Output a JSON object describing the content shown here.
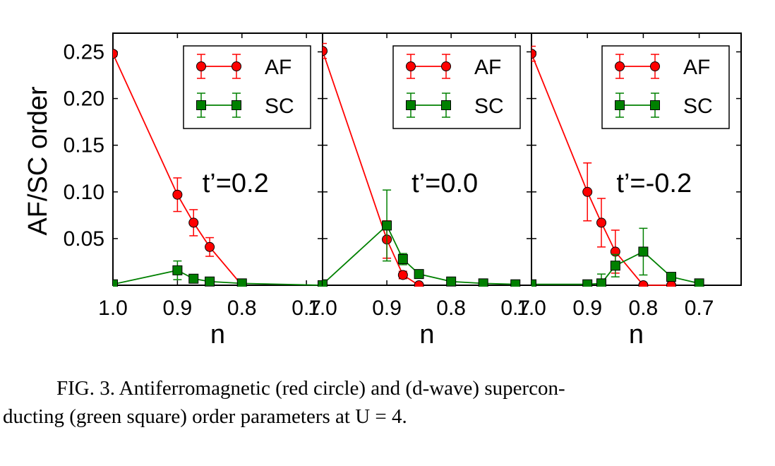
{
  "figure": {
    "ylabel": "AF/SC order",
    "xlabel": "n",
    "colors": {
      "AF": "#ff0000",
      "SC": "#008000",
      "axis": "#000000"
    }
  },
  "chart_data": [
    {
      "type": "line",
      "panel_label": "t’=0.2",
      "xlabel": "n",
      "ylabel": "AF/SC order",
      "xlim": [
        1.0,
        0.675
      ],
      "ylim": [
        0.0,
        0.27
      ],
      "x_ticks": [
        "1.0",
        "0.9",
        "0.8",
        "0.7"
      ],
      "y_ticks": [
        "0.05",
        "0.10",
        "0.15",
        "0.20",
        "0.25"
      ],
      "legend_position": "top-right",
      "series": [
        {
          "name": "AF",
          "marker": "circle",
          "color": "#ff0000",
          "x": [
            1.0,
            0.9,
            0.875,
            0.85,
            0.8
          ],
          "y": [
            0.248,
            0.097,
            0.067,
            0.041,
            0.0
          ],
          "err": [
            0.003,
            0.018,
            0.014,
            0.01,
            0.0
          ]
        },
        {
          "name": "SC",
          "marker": "square",
          "color": "#008000",
          "x": [
            1.0,
            0.9,
            0.875,
            0.85,
            0.8,
            0.675
          ],
          "y": [
            0.001,
            0.016,
            0.007,
            0.004,
            0.002,
            0.0
          ],
          "err": [
            0.0,
            0.01,
            0.003,
            0.002,
            0.0,
            0.0
          ]
        }
      ]
    },
    {
      "type": "line",
      "panel_label": "t’=0.0",
      "xlabel": "n",
      "xlim": [
        1.0,
        0.675
      ],
      "ylim": [
        0.0,
        0.27
      ],
      "x_ticks": [
        "1.0",
        "0.9",
        "0.8",
        "0.7"
      ],
      "legend_position": "top-right",
      "series": [
        {
          "name": "AF",
          "marker": "circle",
          "color": "#ff0000",
          "x": [
            1.0,
            0.9,
            0.875,
            0.85
          ],
          "y": [
            0.251,
            0.049,
            0.011,
            0.0
          ],
          "err": [
            0.008,
            0.02,
            0.004,
            0.0
          ]
        },
        {
          "name": "SC",
          "marker": "square",
          "color": "#008000",
          "x": [
            1.0,
            0.9,
            0.875,
            0.85,
            0.8,
            0.75,
            0.7
          ],
          "y": [
            0.001,
            0.064,
            0.028,
            0.012,
            0.004,
            0.002,
            0.001
          ],
          "err": [
            0.0,
            0.038,
            0.006,
            0.003,
            0.001,
            0.0,
            0.0
          ]
        }
      ]
    },
    {
      "type": "line",
      "panel_label": "t’=-0.2",
      "xlabel": "n",
      "xlim": [
        1.0,
        0.625
      ],
      "ylim": [
        0.0,
        0.27
      ],
      "x_ticks": [
        "1.0",
        "0.9",
        "0.8",
        "0.7"
      ],
      "legend_position": "top-right",
      "series": [
        {
          "name": "AF",
          "marker": "circle",
          "color": "#ff0000",
          "x": [
            1.0,
            0.9,
            0.875,
            0.85,
            0.8,
            0.75
          ],
          "y": [
            0.248,
            0.1,
            0.067,
            0.036,
            0.0,
            0.0
          ],
          "err": [
            0.008,
            0.031,
            0.026,
            0.023,
            0.0,
            0.0
          ]
        },
        {
          "name": "SC",
          "marker": "square",
          "color": "#008000",
          "x": [
            1.0,
            0.9,
            0.875,
            0.85,
            0.8,
            0.75,
            0.7
          ],
          "y": [
            0.001,
            0.001,
            0.002,
            0.021,
            0.036,
            0.009,
            0.002
          ],
          "err": [
            0.0,
            0.0,
            0.01,
            0.012,
            0.025,
            0.004,
            0.0
          ]
        }
      ]
    }
  ],
  "caption": {
    "line1": "FIG. 3.  Antiferromagnetic (red circle) and (d-wave) supercon-",
    "line2": "ducting (green square) order parameters at U = 4."
  }
}
